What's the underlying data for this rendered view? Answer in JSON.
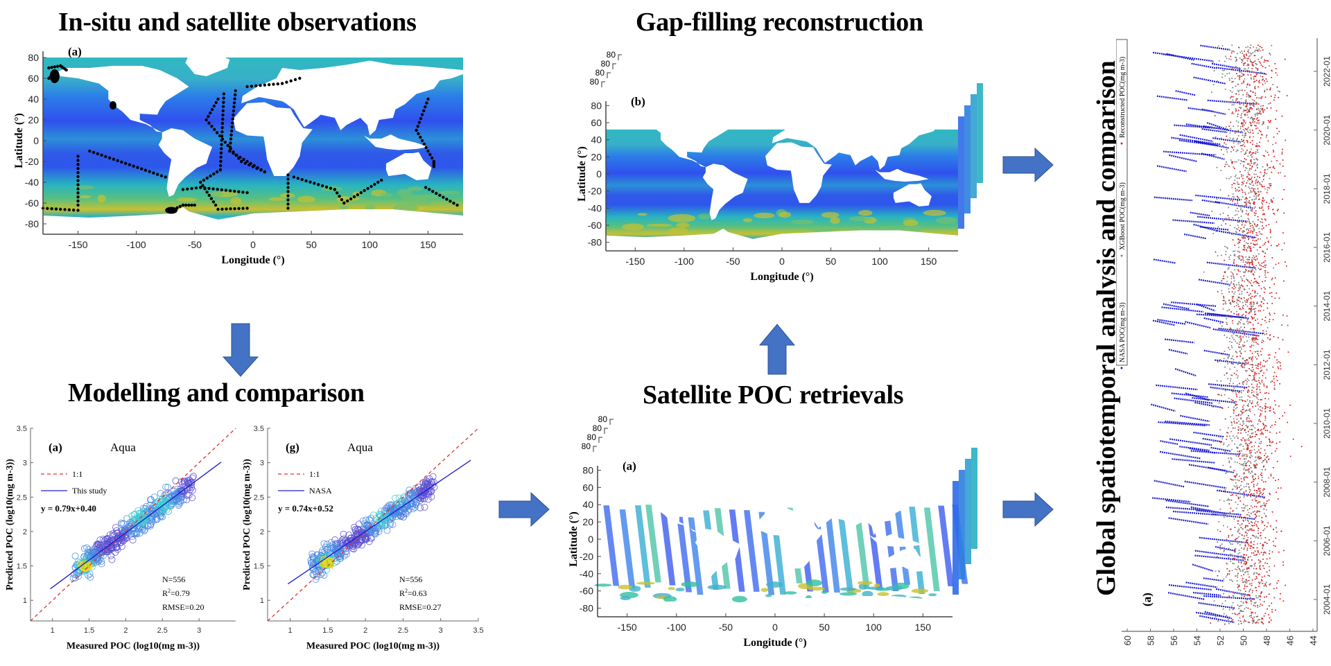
{
  "titles": {
    "insitu": "In-situ and satellite observations",
    "gapfill": "Gap-filling reconstruction",
    "modelling": "Modelling and comparison",
    "satellite": "Satellite POC retrievals",
    "global": "Global spatiotemporal analysis and comparison"
  },
  "colors": {
    "arrow": "#4472c4",
    "arrow_border": "#2f528f",
    "ocean_low": "#3355ee",
    "ocean_mid": "#1fa8c8",
    "ocean_high": "#d8c020",
    "one_to_one": "#e03030",
    "fit_line": "#2020cc",
    "nasa_points": "#1a1acc",
    "xgboost_points": "#808080",
    "reconstructed_points": "#dd2020"
  },
  "chart_data": [
    {
      "id": "insitu-map",
      "type": "heatmap",
      "panel_label": "(a)",
      "title": "In-situ and satellite observations",
      "xlabel": "Longitude (°)",
      "ylabel": "Latitude (°)",
      "xlim": [
        -180,
        180
      ],
      "ylim": [
        -90,
        90
      ],
      "xticks": [
        -150,
        -100,
        -50,
        0,
        50,
        100,
        150
      ],
      "yticks": [
        80,
        60,
        40,
        20,
        0,
        -20,
        -40,
        -60,
        -80
      ],
      "xtick_labels": [
        "-150",
        "-100",
        "-50",
        "0",
        "50",
        "100",
        "150"
      ],
      "ytick_labels": [
        "80",
        "60",
        "40",
        "20",
        "0",
        "-20",
        "-40",
        "-60",
        "-80"
      ],
      "overlay": "in-situ sampling tracks (black dots)"
    },
    {
      "id": "gapfill-map",
      "type": "heatmap",
      "panel_label": "(b)",
      "xlabel": "Longitude (°)",
      "ylabel": "Latitude (°)",
      "xlim": [
        -180,
        180
      ],
      "ylim": [
        -90,
        90
      ],
      "xticks": [
        -150,
        -100,
        -50,
        0,
        50,
        100,
        150
      ],
      "yticks": [
        80,
        60,
        40,
        20,
        0,
        -20,
        -40,
        -60,
        -80
      ],
      "xtick_labels": [
        "-150",
        "-100",
        "-50",
        "0",
        "50",
        "100",
        "150"
      ],
      "ytick_labels": [
        "80",
        "60",
        "40",
        "20",
        "0",
        "-20",
        "-40",
        "-60",
        "-80"
      ],
      "stacked_top_labels": [
        "80",
        "80",
        "80",
        "80"
      ]
    },
    {
      "id": "satellite-map",
      "type": "heatmap",
      "panel_label": "(a)",
      "xlabel": "Longitude (°)",
      "ylabel": "Latitude (°)",
      "xlim": [
        -180,
        180
      ],
      "ylim": [
        -90,
        90
      ],
      "xticks": [
        -150,
        -100,
        -50,
        0,
        50,
        100,
        150
      ],
      "yticks": [
        80,
        60,
        40,
        20,
        0,
        -20,
        -40,
        -60,
        -80
      ],
      "xtick_labels": [
        "-150",
        "-100",
        "-50",
        "0",
        "50",
        "100",
        "150"
      ],
      "ytick_labels": [
        "80",
        "60",
        "40",
        "20",
        "0",
        "-20",
        "-40",
        "-60",
        "-80"
      ],
      "stacked_top_labels": [
        "80",
        "80",
        "80",
        "80"
      ]
    },
    {
      "id": "scatter-this-study",
      "type": "scatter",
      "panel_label": "(a)",
      "subtitle": "Aqua",
      "xlabel": "Measured POC (log10(mg m-3))",
      "ylabel": "Predicted POC (log10(mg m-3))",
      "xlim": [
        0.7,
        3.5
      ],
      "ylim": [
        0.7,
        3.5
      ],
      "xticks": [
        1,
        1.5,
        2,
        2.5,
        3
      ],
      "xtick_labels": [
        "1",
        "1.5",
        "2",
        "2.5",
        "3"
      ],
      "yticks": [
        1,
        1.5,
        2,
        2.5,
        3,
        3.5
      ],
      "ytick_labels": [
        "1",
        "1.5",
        "2",
        "2.5",
        "3",
        "3.5"
      ],
      "legend": [
        "1:1",
        "This study"
      ],
      "equation": "y = 0.79x+0.40",
      "fit": {
        "slope": 0.79,
        "intercept": 0.4,
        "x_range": [
          0.97,
          3.3
        ]
      },
      "stats": {
        "n": "N=556",
        "r2_value": "=0.79",
        "rmse": "RMSE=0.20"
      },
      "cluster_centers": [
        [
          1.45,
          1.5
        ],
        [
          2.2,
          2.2
        ],
        [
          2.5,
          2.4
        ]
      ]
    },
    {
      "id": "scatter-nasa",
      "type": "scatter",
      "panel_label": "(g)",
      "subtitle": "Aqua",
      "xlabel": "Measured POC (log10(mg m-3))",
      "ylabel": "Predicted POC (log10(mg m-3))",
      "xlim": [
        0.7,
        3.5
      ],
      "ylim": [
        0.7,
        3.5
      ],
      "xticks": [
        1,
        1.5,
        2,
        2.5,
        3,
        3.5
      ],
      "xtick_labels": [
        "1",
        "1.5",
        "2",
        "2.5",
        "3",
        "3.5"
      ],
      "yticks": [
        1,
        1.5,
        2,
        2.5,
        3,
        3.5
      ],
      "ytick_labels": [
        "1",
        "1.5",
        "2",
        "2.5",
        "3",
        "3.5"
      ],
      "legend": [
        "1:1",
        "NASA"
      ],
      "equation": "y = 0.74x+0.52",
      "fit": {
        "slope": 0.74,
        "intercept": 0.52,
        "x_range": [
          0.97,
          3.4
        ]
      },
      "stats": {
        "n": "N=556",
        "r2_value": "=0.63",
        "rmse": "RMSE=0.27"
      },
      "cluster_centers": [
        [
          1.5,
          1.55
        ],
        [
          2.2,
          2.2
        ],
        [
          2.4,
          2.5
        ]
      ]
    },
    {
      "id": "timeseries",
      "type": "scatter",
      "panel_label": "(a)",
      "orientation": "rotated 90° (time axis vertical)",
      "value_axis_ticks": [
        "60",
        "58",
        "56",
        "54",
        "52",
        "50",
        "48",
        "46",
        "44"
      ],
      "value_lim": [
        44,
        60
      ],
      "time_axis_ticks": [
        "2004-01",
        "2006-01",
        "2008-01",
        "2010-01",
        "2012-01",
        "2014-01",
        "2016-01",
        "2018-01",
        "2020-01",
        "2022-01"
      ],
      "legend": [
        "NASA POC(mg m-3)",
        "XGBoost POC(mg m-3)",
        "Reconstructed POC(mg m-3)"
      ],
      "series_ranges": {
        "NASA POC": [
          52,
          58
        ],
        "XGBoost POC": [
          48,
          54
        ],
        "Reconstructed POC": [
          46,
          53
        ]
      }
    }
  ],
  "arrows": [
    {
      "id": "arrow-down",
      "direction": "down"
    },
    {
      "id": "arrow-up",
      "direction": "up"
    },
    {
      "id": "arrow-right-mid",
      "direction": "right"
    },
    {
      "id": "arrow-right-top",
      "direction": "right"
    },
    {
      "id": "arrow-right-bottom",
      "direction": "right"
    }
  ]
}
